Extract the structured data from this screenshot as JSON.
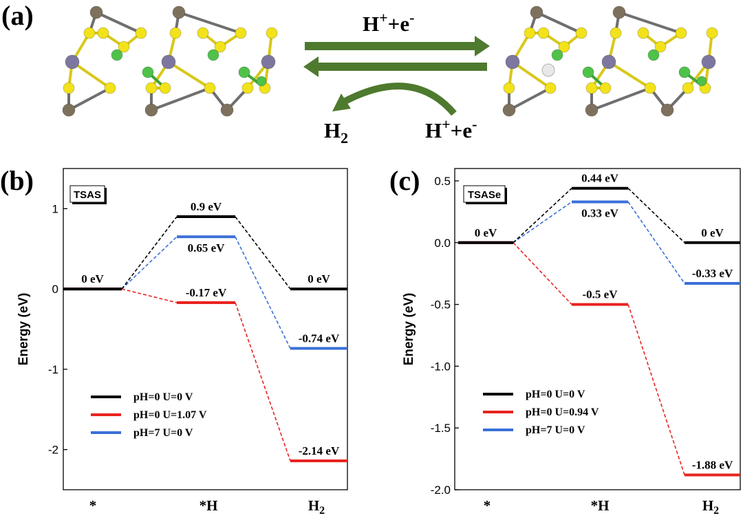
{
  "figure": {
    "panel_a_label": "(a)",
    "panel_b_label": "(b)",
    "panel_c_label": "(c)",
    "reaction": {
      "forward_label_main": "H",
      "forward_label_sup": "+",
      "forward_label_rest": "+e",
      "forward_label_sup2": "-",
      "h2_main": "H",
      "h2_sub": "2",
      "colors": {
        "arrow": "#4e7a2e",
        "s_atom": "#f2e21a",
        "metal_top": "#7d715e",
        "metal_mid": "#7d77a0",
        "cl_atom": "#4fc24a",
        "h_atom": "#e8e8e8"
      }
    }
  },
  "chart_data": [
    {
      "type": "energy-level-diagram",
      "badge": "TSAS",
      "ylabel": "Energy (eV)",
      "ylim": [
        -2.5,
        1.5
      ],
      "yticks": [
        {
          "v": 1,
          "label": "1"
        },
        {
          "v": 0,
          "label": "0"
        },
        {
          "v": -1,
          "label": "-1"
        },
        {
          "v": -2,
          "label": "-2"
        }
      ],
      "categories": [
        {
          "main": "*",
          "sub": ""
        },
        {
          "main": "*H",
          "sub": ""
        },
        {
          "main": "H",
          "sub": "2"
        }
      ],
      "series": [
        {
          "name": "pH=0 U=0 V",
          "color": "#000000",
          "values": [
            0,
            0.9,
            0
          ],
          "labels": [
            "0 eV",
            "0.9 eV",
            "0 eV"
          ],
          "label_pos": [
            "above",
            "above",
            "above"
          ]
        },
        {
          "name": "pH=0 U=1.07 V",
          "color": "#e8231f",
          "values": [
            0,
            -0.17,
            -2.14
          ],
          "labels": [
            "",
            "-0.17 eV",
            "-2.14 eV"
          ],
          "label_pos": [
            "none",
            "above",
            "above"
          ]
        },
        {
          "name": "pH=7 U=0 V",
          "color": "#3a6fd8",
          "values": [
            0,
            0.65,
            -0.74
          ],
          "labels": [
            "",
            "0.65 eV",
            "-0.74 eV"
          ],
          "label_pos": [
            "none",
            "below",
            "above"
          ]
        }
      ]
    },
    {
      "type": "energy-level-diagram",
      "badge": "TSASe",
      "ylabel": "Energy (eV)",
      "ylim": [
        -2.0,
        0.6
      ],
      "yticks": [
        {
          "v": 0.5,
          "label": "0.5"
        },
        {
          "v": 0.0,
          "label": "0.0"
        },
        {
          "v": -0.5,
          "label": "-0.5"
        },
        {
          "v": -1.0,
          "label": "-1.0"
        },
        {
          "v": -1.5,
          "label": "-1.5"
        },
        {
          "v": -2.0,
          "label": "-2.0"
        }
      ],
      "categories": [
        {
          "main": "*",
          "sub": ""
        },
        {
          "main": "*H",
          "sub": ""
        },
        {
          "main": "H",
          "sub": "2"
        }
      ],
      "series": [
        {
          "name": "pH=0 U=0 V",
          "color": "#000000",
          "values": [
            0,
            0.44,
            0
          ],
          "labels": [
            "0 eV",
            "0.44 eV",
            "0 eV"
          ],
          "label_pos": [
            "above",
            "above",
            "above"
          ]
        },
        {
          "name": "pH=0 U=0.94 V",
          "color": "#e8231f",
          "values": [
            0,
            -0.5,
            -1.88
          ],
          "labels": [
            "",
            "-0.5 eV",
            "-1.88 eV"
          ],
          "label_pos": [
            "none",
            "above",
            "above"
          ]
        },
        {
          "name": "pH=7 U=0 V",
          "color": "#3a6fd8",
          "values": [
            0,
            0.33,
            -0.33
          ],
          "labels": [
            "",
            "0.33 eV",
            "-0.33 eV"
          ],
          "label_pos": [
            "none",
            "below",
            "above"
          ]
        }
      ]
    }
  ]
}
